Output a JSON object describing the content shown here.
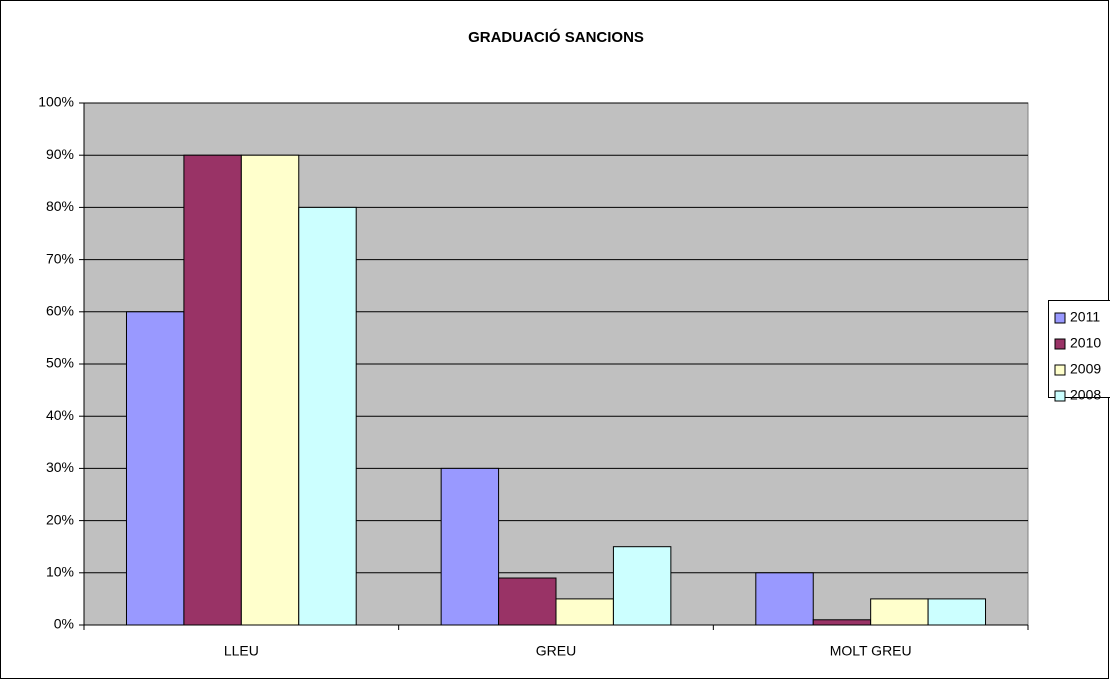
{
  "chart_data": {
    "type": "bar",
    "title": "GRADUACIÓ SANCIONS",
    "categories": [
      "LLEU",
      "GREU",
      "MOLT GREU"
    ],
    "series": [
      {
        "name": "2011",
        "color": "#9999ff",
        "values": [
          60,
          30,
          10
        ]
      },
      {
        "name": "2010",
        "color": "#993366",
        "values": [
          90,
          9,
          1
        ]
      },
      {
        "name": "2009",
        "color": "#ffffcc",
        "values": [
          90,
          5,
          5
        ]
      },
      {
        "name": "2008",
        "color": "#ccffff",
        "values": [
          80,
          15,
          5
        ]
      }
    ],
    "ylim": [
      0,
      100
    ],
    "yticks": [
      {
        "value": 0,
        "label": "0%"
      },
      {
        "value": 10,
        "label": "10%"
      },
      {
        "value": 20,
        "label": "20%"
      },
      {
        "value": 30,
        "label": "30%"
      },
      {
        "value": 40,
        "label": "40%"
      },
      {
        "value": 50,
        "label": "50%"
      },
      {
        "value": 60,
        "label": "60%"
      },
      {
        "value": 70,
        "label": "70%"
      },
      {
        "value": 80,
        "label": "80%"
      },
      {
        "value": 90,
        "label": "90%"
      },
      {
        "value": 100,
        "label": "100%"
      }
    ],
    "grid": true,
    "legend": "right"
  }
}
